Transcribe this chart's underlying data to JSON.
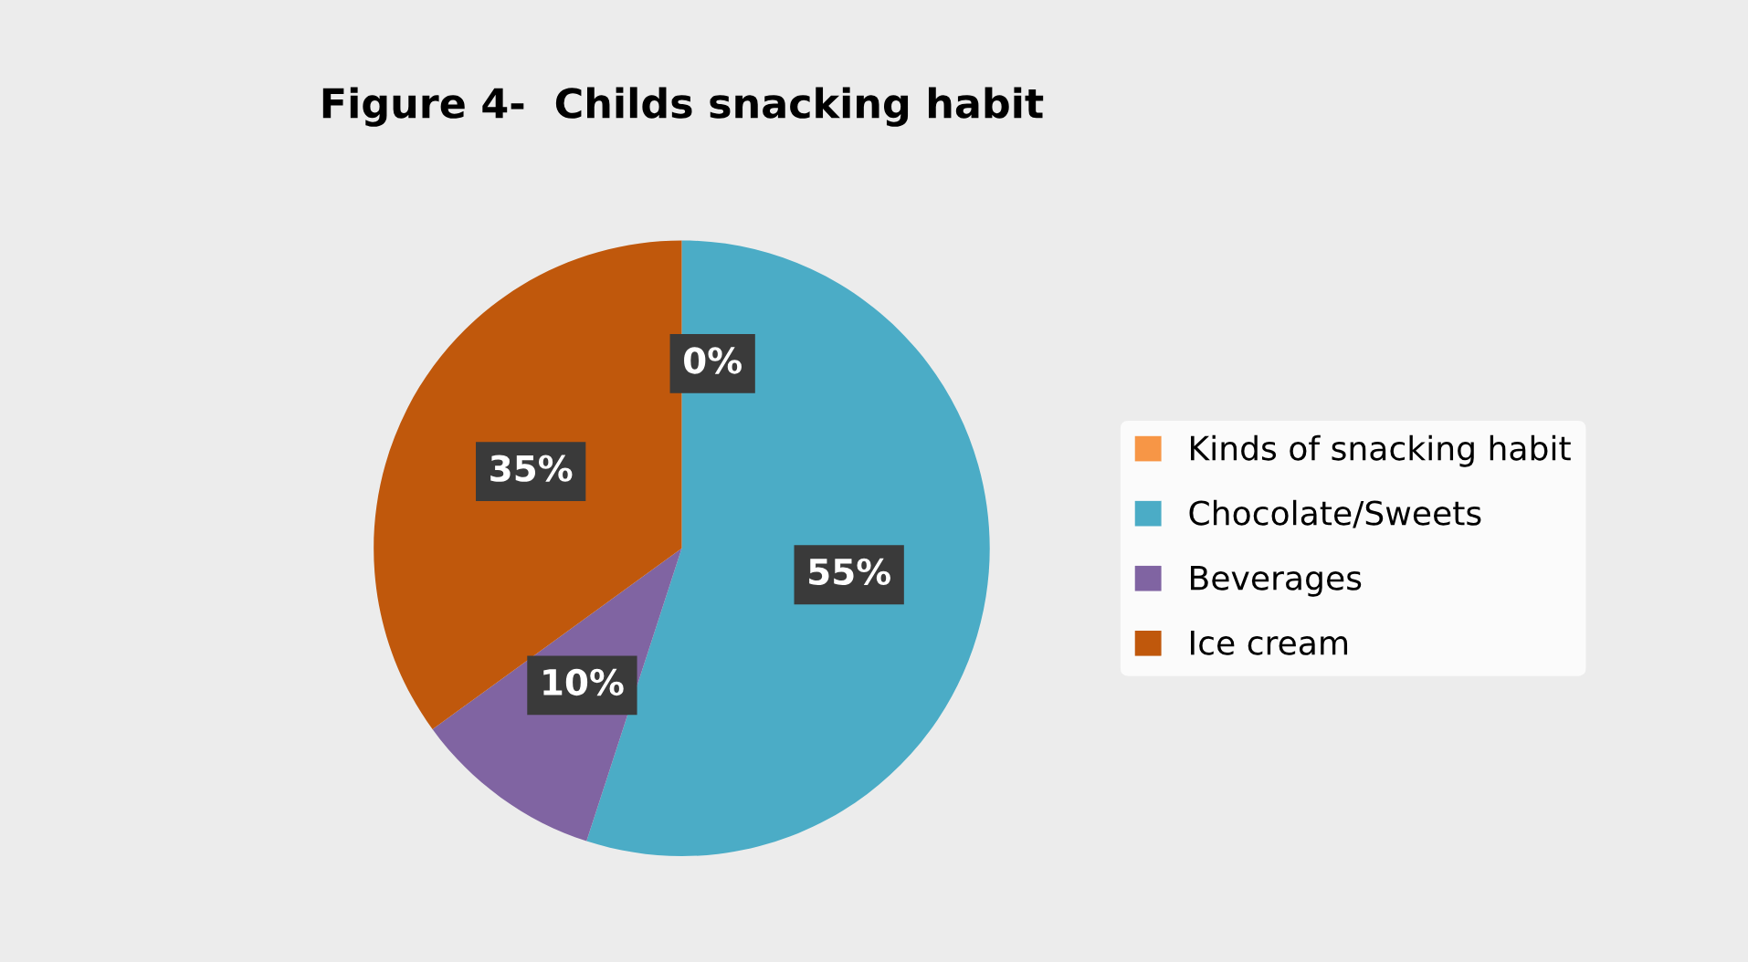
{
  "chart_data": {
    "type": "pie",
    "title": "Figure 4-  Childs snacking habit",
    "categories": [
      "Kinds of snacking habit",
      "Chocolate/Sweets",
      "Beverages",
      "Ice cream"
    ],
    "values": [
      0,
      55,
      10,
      35
    ],
    "colors": [
      "#f79646",
      "#4bacc6",
      "#8064a2",
      "#c0580c"
    ],
    "value_labels": [
      "0%",
      "55%",
      "10%",
      "35%"
    ],
    "legend": "right"
  }
}
